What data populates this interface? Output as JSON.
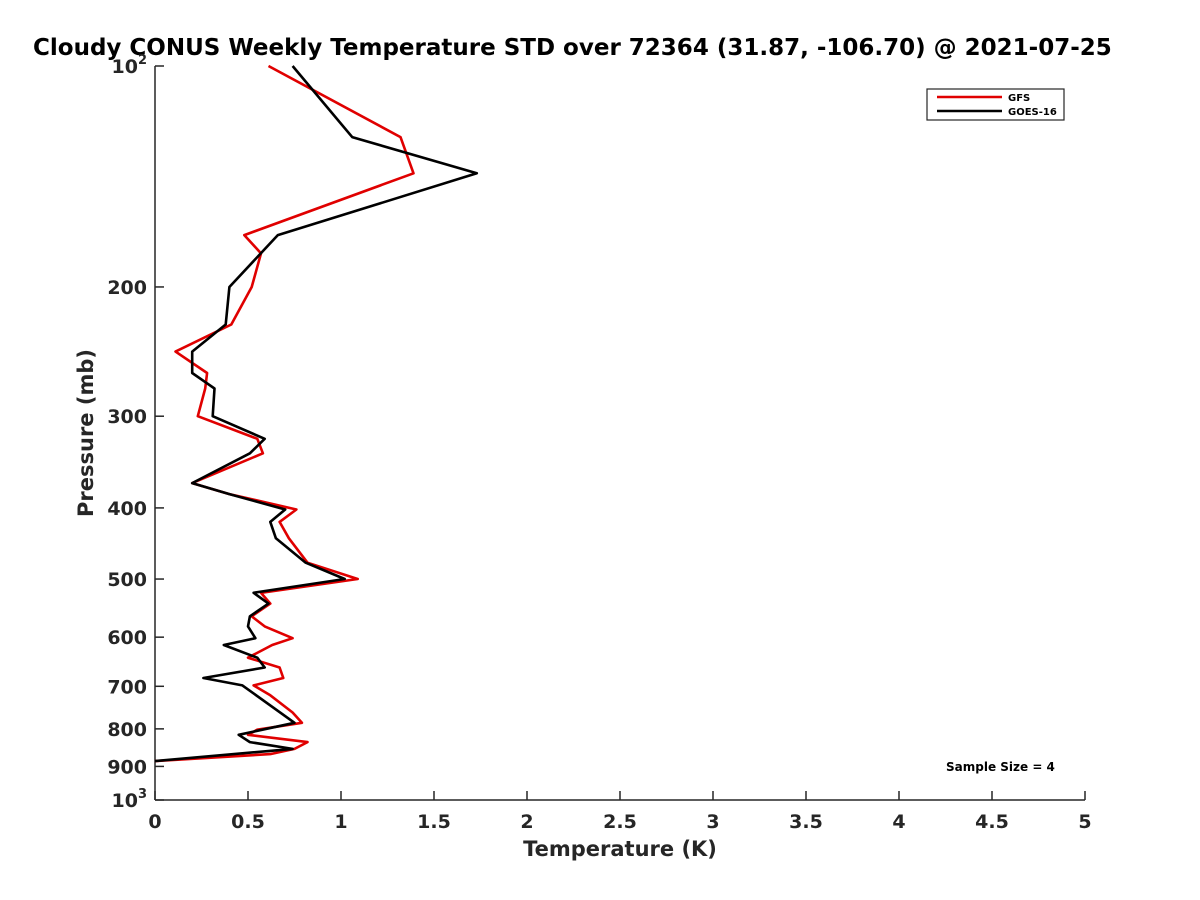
{
  "chart_data": {
    "type": "line",
    "title": "Cloudy CONUS Weekly Temperature STD over 72364 (31.87, -106.70) @ 2021-07-25",
    "xlabel": "Temperature (K)",
    "ylabel": "Pressure (mb)",
    "xlim": [
      0,
      5
    ],
    "ylim": [
      100,
      1000
    ],
    "y_scale": "log",
    "y_reversed": true,
    "grid": false,
    "legend_position": "top-right",
    "x_ticks": [
      0,
      0.5,
      1,
      1.5,
      2,
      2.5,
      3,
      3.5,
      4,
      4.5,
      5
    ],
    "x_tick_labels": [
      "0",
      "0.5",
      "1",
      "1.5",
      "2",
      "2.5",
      "3",
      "3.5",
      "4",
      "4.5",
      "5"
    ],
    "y_ticks": [
      100,
      200,
      300,
      400,
      500,
      600,
      700,
      800,
      900,
      1000
    ],
    "y_tick_labels": [
      {
        "base": "10",
        "exp": "2"
      },
      {
        "base": "200",
        "exp": ""
      },
      {
        "base": "300",
        "exp": ""
      },
      {
        "base": "400",
        "exp": ""
      },
      {
        "base": "500",
        "exp": ""
      },
      {
        "base": "600",
        "exp": ""
      },
      {
        "base": "700",
        "exp": ""
      },
      {
        "base": "800",
        "exp": ""
      },
      {
        "base": "900",
        "exp": ""
      },
      {
        "base": "10",
        "exp": "3"
      }
    ],
    "series": [
      {
        "name": "GFS",
        "color": "#e00000",
        "x": [
          0.61,
          1.32,
          1.39,
          0.48,
          0.57,
          0.52,
          0.41,
          0.11,
          0.28,
          0.27,
          0.23,
          0.55,
          0.58,
          0.2,
          0.4,
          0.76,
          0.67,
          0.72,
          0.82,
          1.09,
          0.57,
          0.62,
          0.52,
          0.59,
          0.74,
          0.63,
          0.5,
          0.67,
          0.69,
          0.53,
          0.62,
          0.74,
          0.79,
          0.55,
          0.5,
          0.82,
          0.75,
          0.62,
          0.0
        ],
        "y": [
          100,
          125,
          140,
          170,
          180,
          200,
          225,
          245,
          262,
          275,
          300,
          322,
          337,
          370,
          383,
          402,
          418,
          440,
          475,
          500,
          522,
          540,
          562,
          580,
          602,
          615,
          640,
          660,
          682,
          698,
          720,
          760,
          785,
          802,
          815,
          834,
          852,
          866,
          885
        ]
      },
      {
        "name": "GOES-16",
        "color": "#000000",
        "x": [
          0.74,
          1.06,
          1.73,
          0.66,
          0.4,
          0.38,
          0.2,
          0.2,
          0.32,
          0.31,
          0.59,
          0.51,
          0.2,
          0.4,
          0.7,
          0.62,
          0.65,
          0.81,
          1.02,
          0.53,
          0.61,
          0.51,
          0.5,
          0.54,
          0.37,
          0.55,
          0.59,
          0.26,
          0.47,
          0.75,
          0.45,
          0.51,
          0.74,
          0.0
        ],
        "y": [
          100,
          125,
          140,
          170,
          200,
          225,
          245,
          262,
          275,
          300,
          322,
          337,
          370,
          383,
          402,
          418,
          440,
          475,
          500,
          522,
          540,
          562,
          580,
          602,
          615,
          640,
          660,
          682,
          698,
          785,
          815,
          834,
          852,
          885
        ]
      }
    ],
    "annotation": "Sample Size = 4"
  }
}
